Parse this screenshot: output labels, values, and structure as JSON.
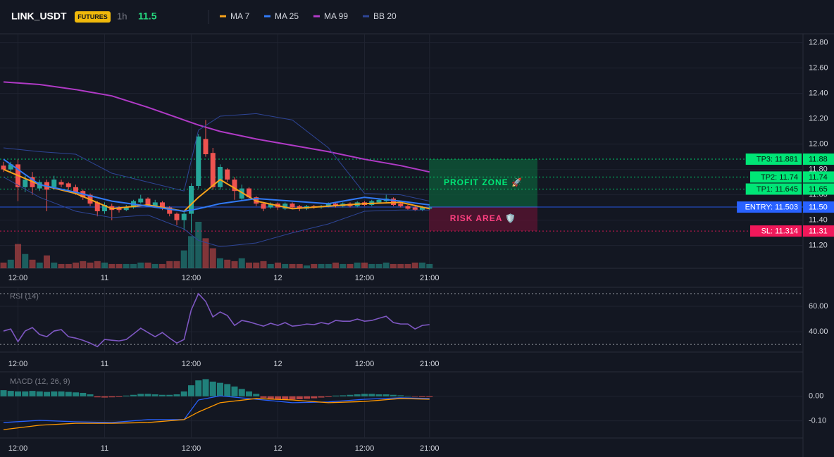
{
  "header": {
    "symbol": "LINK_USDT",
    "badge": "FUTURES",
    "interval": "1h",
    "price": 11.5
  },
  "chart_data": [
    {
      "type": "candlestick",
      "categories": [
        null,
        null,
        "12:00",
        null,
        null,
        null,
        null,
        null,
        null,
        null,
        null,
        null,
        null,
        null,
        "11",
        null,
        null,
        null,
        null,
        null,
        null,
        null,
        null,
        null,
        null,
        null,
        "12:00",
        null,
        null,
        null,
        null,
        null,
        null,
        null,
        null,
        null,
        null,
        null,
        "12",
        null,
        null,
        null,
        null,
        null,
        null,
        null,
        null,
        null,
        null,
        null,
        "12:00",
        null,
        null,
        null,
        null,
        null,
        null,
        null,
        null,
        "21:00"
      ],
      "open": [
        11.83,
        11.8,
        11.84,
        11.66,
        11.74,
        11.65,
        11.7,
        11.66,
        11.7,
        11.69,
        11.66,
        11.63,
        11.6,
        11.54,
        11.47,
        11.51,
        11.5,
        11.48,
        11.5,
        11.54,
        11.57,
        11.51,
        11.54,
        11.5,
        11.45,
        11.4,
        11.45,
        11.67,
        12.04,
        11.93,
        11.66,
        11.8,
        11.72,
        11.57,
        11.65,
        11.58,
        11.53,
        11.5,
        11.53,
        11.49,
        11.53,
        11.51,
        11.49,
        11.51,
        11.5,
        11.51,
        11.53,
        11.51,
        11.53,
        11.51,
        11.54,
        11.52,
        11.54,
        11.55,
        11.57,
        11.53,
        11.51,
        11.5,
        11.48,
        11.49
      ],
      "high": [
        11.86,
        11.86,
        11.88,
        11.75,
        11.78,
        11.72,
        11.72,
        11.75,
        11.72,
        11.7,
        11.68,
        11.64,
        11.61,
        11.55,
        11.54,
        11.53,
        11.51,
        11.52,
        11.56,
        11.6,
        11.58,
        11.56,
        11.55,
        11.51,
        11.46,
        11.47,
        11.69,
        12.08,
        12.19,
        11.97,
        11.84,
        11.81,
        11.74,
        11.68,
        11.66,
        11.59,
        11.54,
        11.54,
        11.54,
        11.54,
        11.54,
        11.52,
        11.52,
        11.52,
        11.52,
        11.54,
        11.54,
        11.54,
        11.54,
        11.55,
        11.55,
        11.56,
        11.57,
        11.6,
        11.58,
        11.54,
        11.52,
        11.51,
        11.51,
        11.51
      ],
      "low": [
        11.78,
        11.78,
        11.55,
        11.62,
        11.6,
        11.63,
        11.47,
        11.64,
        11.66,
        11.64,
        11.6,
        11.56,
        11.51,
        11.43,
        11.45,
        11.4,
        11.46,
        11.47,
        11.49,
        11.53,
        11.51,
        11.5,
        11.48,
        11.43,
        11.36,
        11.32,
        11.3,
        11.65,
        11.9,
        11.64,
        11.64,
        11.7,
        11.56,
        11.55,
        11.56,
        11.51,
        11.47,
        11.49,
        11.48,
        11.48,
        11.49,
        11.47,
        11.48,
        11.49,
        11.49,
        11.5,
        11.5,
        11.5,
        11.5,
        11.5,
        11.51,
        11.51,
        11.53,
        11.54,
        11.51,
        11.5,
        11.48,
        11.47,
        11.47,
        11.48
      ],
      "close": [
        11.8,
        11.84,
        11.66,
        11.72,
        11.66,
        11.7,
        11.64,
        11.72,
        11.68,
        11.66,
        11.62,
        11.58,
        11.53,
        11.47,
        11.52,
        11.48,
        11.48,
        11.5,
        11.55,
        11.57,
        11.52,
        11.54,
        11.5,
        11.45,
        11.4,
        11.45,
        11.67,
        12.06,
        11.92,
        11.66,
        11.82,
        11.72,
        11.63,
        11.65,
        11.58,
        11.53,
        11.49,
        11.53,
        11.5,
        11.53,
        11.5,
        11.49,
        11.51,
        11.5,
        11.51,
        11.53,
        11.51,
        11.53,
        11.51,
        11.54,
        11.52,
        11.55,
        11.56,
        11.57,
        11.52,
        11.51,
        11.49,
        11.48,
        11.5,
        11.5
      ],
      "volume": [
        8,
        12,
        34,
        20,
        12,
        8,
        18,
        8,
        6,
        6,
        8,
        10,
        8,
        10,
        8,
        6,
        6,
        6,
        6,
        8,
        8,
        6,
        6,
        10,
        10,
        25,
        45,
        65,
        42,
        28,
        14,
        12,
        10,
        14,
        8,
        8,
        10,
        6,
        8,
        6,
        6,
        6,
        4,
        6,
        6,
        6,
        8,
        6,
        6,
        8,
        8,
        6,
        6,
        8,
        6,
        6,
        6,
        8,
        8,
        6
      ],
      "up_color": "#26a69a",
      "down_color": "#ef5350",
      "overlay_x": [
        0,
        5,
        10,
        15,
        20,
        25,
        27,
        30,
        35,
        40,
        45,
        50,
        55,
        59
      ],
      "overlays": [
        {
          "name": "MA 7",
          "color": "#f7a21b",
          "values": [
            11.8,
            11.68,
            11.61,
            11.49,
            11.52,
            11.47,
            11.58,
            11.72,
            11.55,
            11.49,
            11.51,
            11.53,
            11.54,
            11.49
          ]
        },
        {
          "name": "MA 25",
          "color": "#3179f5",
          "values": [
            11.88,
            11.68,
            11.62,
            11.55,
            11.51,
            11.47,
            11.49,
            11.53,
            11.57,
            11.55,
            11.53,
            11.58,
            11.55,
            11.52
          ]
        },
        {
          "name": "MA 99",
          "color": "#b03ac6",
          "values": [
            12.49,
            12.47,
            12.43,
            12.38,
            12.29,
            12.19,
            12.15,
            12.1,
            12.04,
            11.99,
            11.94,
            11.88,
            11.83,
            11.78
          ]
        },
        {
          "name": "BB 20",
          "color": "#2e4596",
          "upper": [
            11.97,
            11.94,
            11.92,
            11.77,
            11.7,
            11.63,
            12.11,
            12.22,
            12.24,
            12.19,
            11.97,
            11.61,
            11.6,
            11.55
          ],
          "lower": [
            11.74,
            11.58,
            11.47,
            11.42,
            11.44,
            11.33,
            11.24,
            11.19,
            11.22,
            11.3,
            11.37,
            11.47,
            11.48,
            11.48
          ]
        }
      ],
      "ylim": [
        11.02,
        12.87
      ],
      "yticks": [
        {
          "value": 12.8,
          "label": "12.80"
        },
        {
          "value": 12.6,
          "label": "12.60"
        },
        {
          "value": 12.4,
          "label": "12.40"
        },
        {
          "value": 12.2,
          "label": "12.20"
        },
        {
          "value": 12.0,
          "label": "12.00"
        },
        {
          "value": 11.8,
          "label": "11.80"
        },
        {
          "value": 11.6,
          "label": "11.60"
        },
        {
          "value": 11.4,
          "label": "11.40"
        },
        {
          "value": 11.2,
          "label": "11.20"
        }
      ],
      "grid": true,
      "levels": [
        {
          "label": "TP3: 11.881",
          "value": 11.881,
          "value_label": "11.88",
          "color": "#00e676",
          "text_color": "#0b1a12",
          "line_style": "dotted"
        },
        {
          "label": "TP2: 11.74",
          "value": 11.74,
          "value_label": "11.74",
          "color": "#00e676",
          "text_color": "#0b1a12",
          "line_style": "dotted"
        },
        {
          "label": "TP1: 11.645",
          "value": 11.645,
          "value_label": "11.65",
          "color": "#00e676",
          "text_color": "#0b1a12",
          "line_style": "dotted"
        },
        {
          "label": "ENTRY: 11.503",
          "value": 11.503,
          "value_label": "11.50",
          "color": "#2962ff",
          "text_color": "#ffffff",
          "line_style": "solid"
        },
        {
          "label": "SL: 11.314",
          "value": 11.314,
          "value_label": "11.31",
          "color": "#f0185a",
          "text_color": "#ffffff",
          "line_style": "dotted"
        }
      ],
      "zones": [
        {
          "label": "PROFIT ZONE 🚀",
          "from": 11.503,
          "to": 11.881,
          "color": "#0d5c3a",
          "text_color": "#00e676"
        },
        {
          "label": "RISK AREA 🛡️",
          "from": 11.314,
          "to": 11.503,
          "color": "#5c1432",
          "text_color": "#ff4081"
        }
      ]
    },
    {
      "type": "line",
      "title": "RSI (14)",
      "color": "#7e57c2",
      "values": [
        40.6,
        42.2,
        32.2,
        40.6,
        43.3,
        37.8,
        36.1,
        40.6,
        41.7,
        36.1,
        35,
        33.3,
        31.1,
        28.3,
        33.9,
        33.3,
        32.8,
        33.9,
        38.3,
        42.8,
        39.4,
        36.1,
        39.4,
        35,
        31.1,
        33.9,
        57.2,
        70,
        63.9,
        51.7,
        55.6,
        52.8,
        45,
        48.9,
        47.8,
        46.1,
        44.4,
        46.7,
        45,
        47.2,
        44.4,
        45,
        46.1,
        45.6,
        47.2,
        46.1,
        48.9,
        48.3,
        48.3,
        50,
        48.3,
        48.9,
        50.6,
        52.2,
        47.2,
        46.1,
        46.1,
        42.2,
        45,
        45.6
      ],
      "ylim": [
        24,
        75
      ],
      "yticks": [
        {
          "value": 60,
          "label": "60.00"
        },
        {
          "value": 40,
          "label": "40.00"
        }
      ],
      "levels": [
        70,
        30
      ]
    },
    {
      "type": "combo",
      "title": "MACD (12, 26, 9)",
      "histogram": [
        0.025,
        0.022,
        0.02,
        0.02,
        0.022,
        0.02,
        0.018,
        0.02,
        0.02,
        0.018,
        0.016,
        0.014,
        0.008,
        -0.004,
        -0.005,
        -0.004,
        -0.003,
        0.003,
        0.006,
        0.01,
        0.01,
        0.008,
        0.006,
        0.006,
        0.008,
        0.02,
        0.045,
        0.065,
        0.07,
        0.06,
        0.055,
        0.05,
        0.04,
        0.03,
        0.02,
        0.01,
        -0.006,
        -0.012,
        -0.014,
        -0.015,
        -0.013,
        -0.012,
        -0.01,
        -0.008,
        -0.005,
        -0.003,
        0.003,
        0.004,
        0.006,
        0.008,
        0.01,
        0.01,
        0.008,
        0.008,
        0.006,
        0.004,
        0.002,
        -0.002,
        -0.003,
        -0.003
      ],
      "up_color": "#26a69a",
      "down_color": "#ef5350",
      "x": [
        0,
        5,
        10,
        15,
        20,
        25,
        27,
        30,
        35,
        40,
        45,
        50,
        55,
        59
      ],
      "series": [
        {
          "color": "#2962ff",
          "values": [
            -0.107,
            -0.098,
            -0.104,
            -0.107,
            -0.095,
            -0.095,
            -0.015,
            0.002,
            -0.012,
            -0.026,
            -0.023,
            -0.012,
            -0.006,
            -0.009
          ]
        },
        {
          "color": "#ff9800",
          "values": [
            -0.136,
            -0.118,
            -0.11,
            -0.11,
            -0.107,
            -0.095,
            -0.064,
            -0.026,
            -0.009,
            -0.015,
            -0.026,
            -0.021,
            -0.009,
            -0.012
          ]
        }
      ],
      "ylim": [
        -0.17,
        0.1
      ],
      "yticks": [
        {
          "value": 0,
          "label": "0.00"
        },
        {
          "value": -0.1,
          "label": "-0.10"
        }
      ]
    }
  ]
}
